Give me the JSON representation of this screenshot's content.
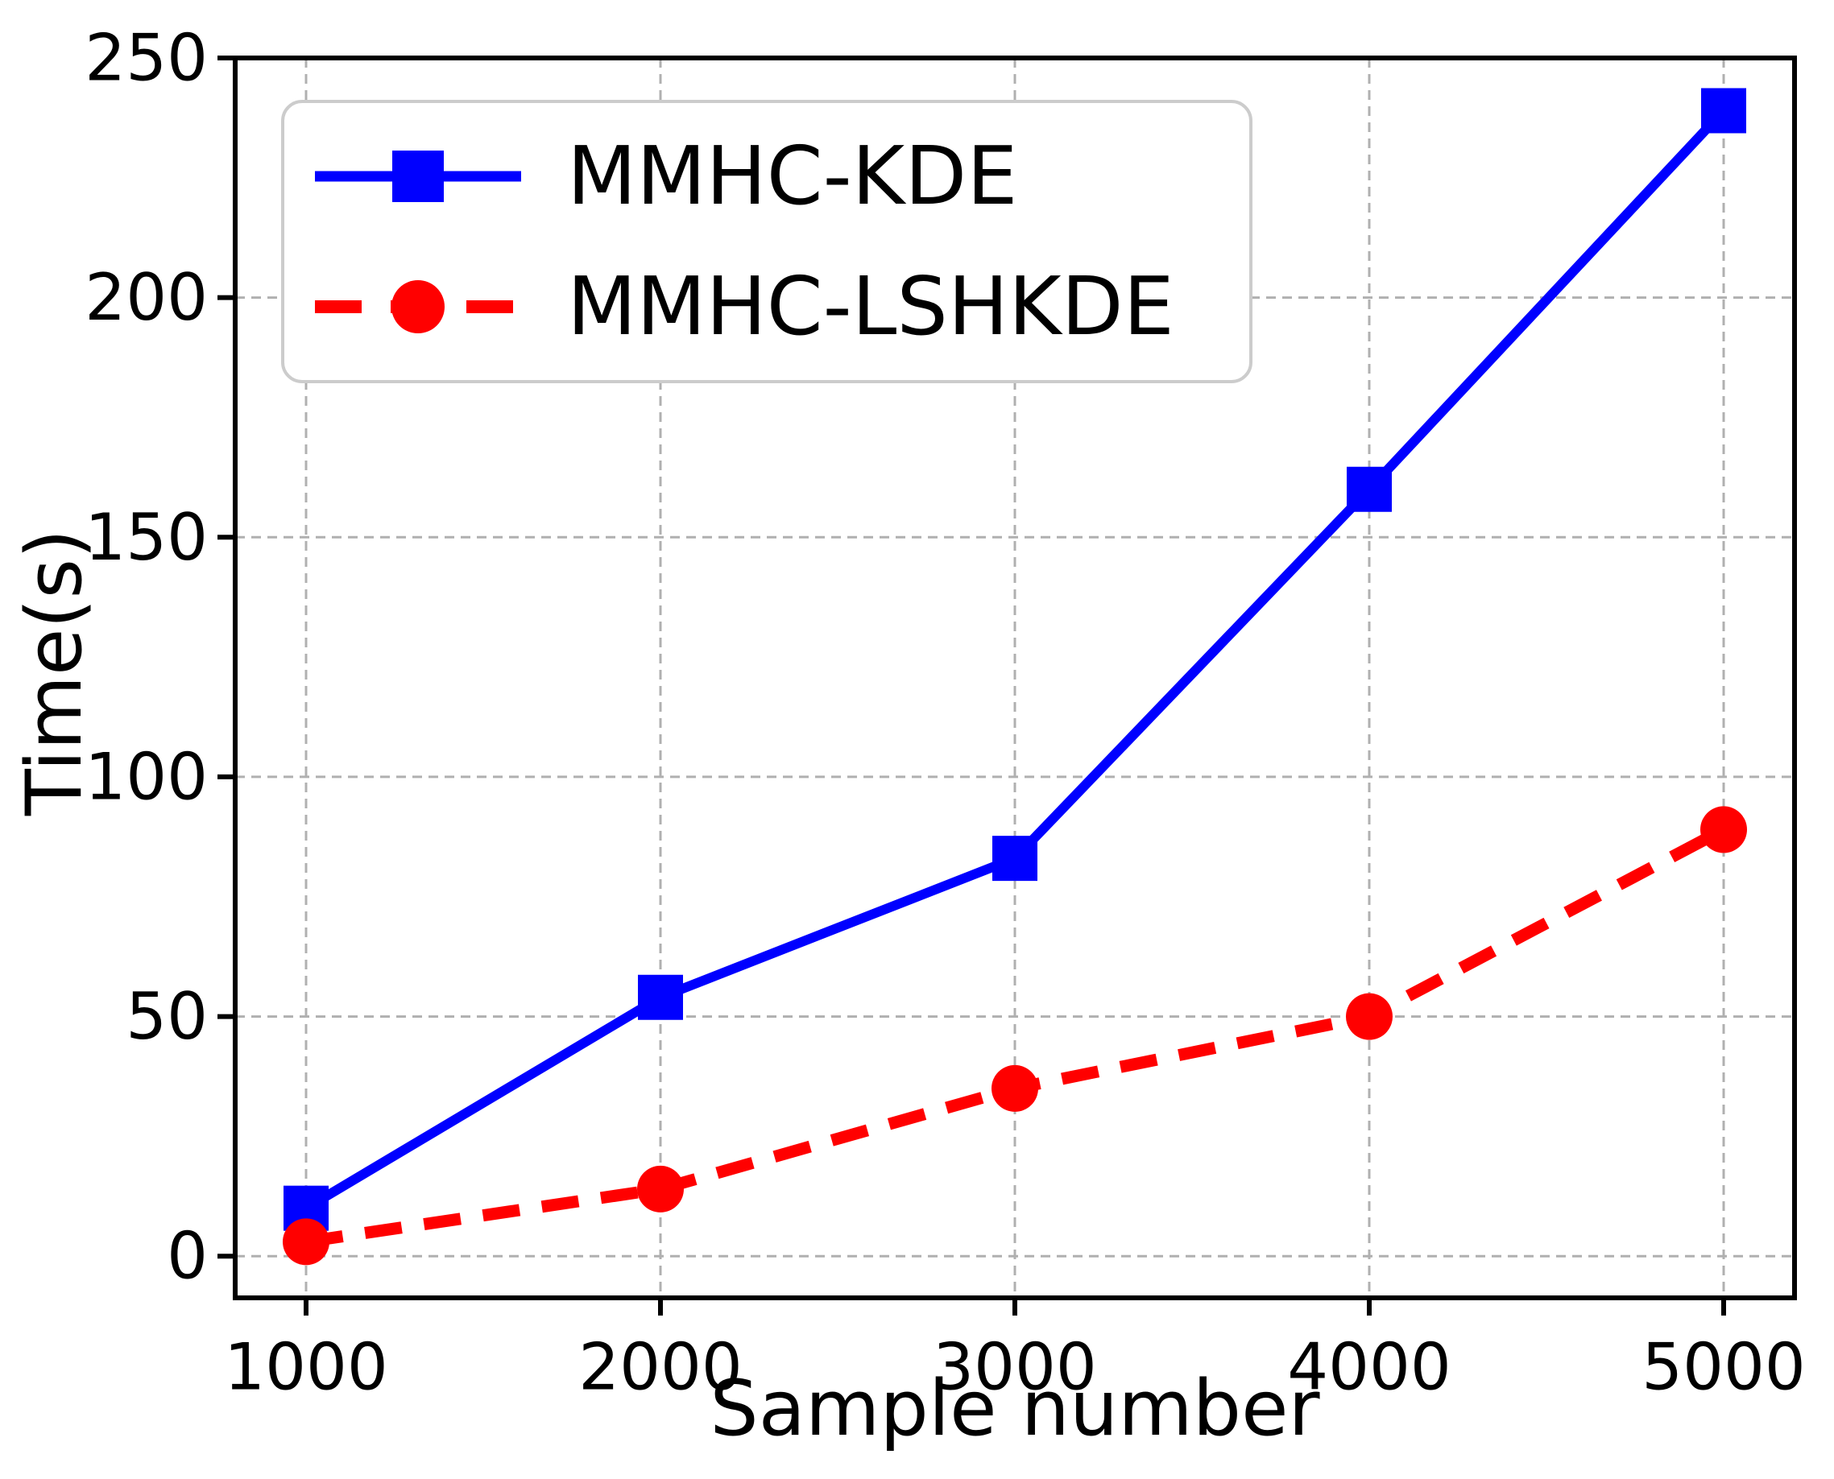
{
  "chart_data": {
    "type": "line",
    "title": "",
    "xlabel": "Sample number",
    "ylabel": "Time(s)",
    "x": [
      1000,
      2000,
      3000,
      4000,
      5000
    ],
    "xticks": [
      1000,
      2000,
      3000,
      4000,
      5000
    ],
    "yticks": [
      0,
      50,
      100,
      150,
      200,
      250
    ],
    "xlim": [
      800,
      5200
    ],
    "ylim": [
      -8.7,
      250
    ],
    "grid": true,
    "legend_position": "upper-left",
    "series": [
      {
        "name": "MMHC-KDE",
        "color": "#0000ff",
        "linestyle": "solid",
        "marker": "square",
        "values": [
          10,
          54,
          83,
          160,
          239
        ]
      },
      {
        "name": "MMHC-LSHKDE",
        "color": "#ff0000",
        "linestyle": "dashed",
        "marker": "circle",
        "values": [
          3,
          14,
          35,
          50,
          89
        ]
      }
    ]
  },
  "colors": {
    "background": "#ffffff",
    "grid": "#b0b0b0",
    "spine": "#000000",
    "tick": "#000000",
    "text": "#000000",
    "legend_border": "#cccccc"
  }
}
